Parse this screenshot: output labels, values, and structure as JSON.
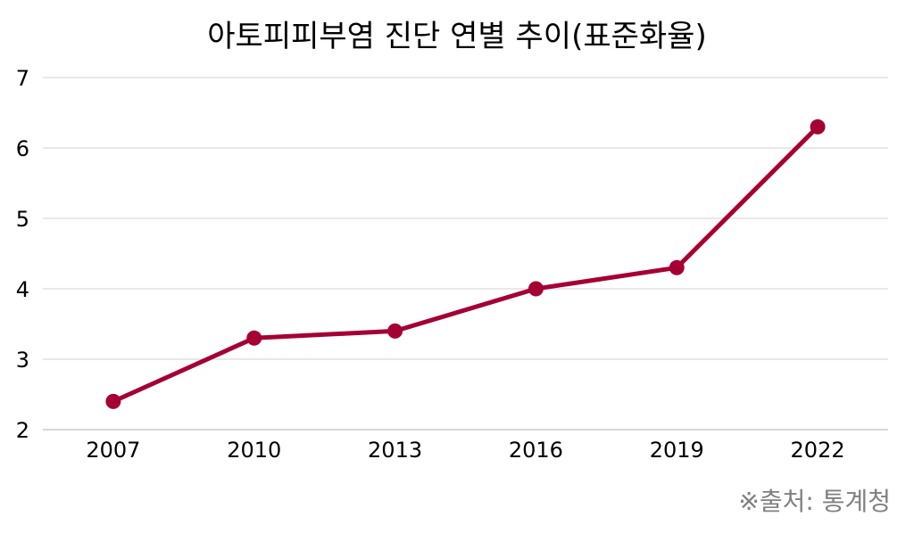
{
  "chart_data": {
    "type": "line",
    "title": "아토피피부염 진단 연별 추이(표준화율)",
    "xlabel": "",
    "ylabel": "",
    "categories": [
      "2007",
      "2010",
      "2013",
      "2016",
      "2019",
      "2022"
    ],
    "series": [
      {
        "values": [
          2.4,
          3.3,
          3.4,
          4.0,
          4.3,
          6.3
        ],
        "color": "#a50034"
      }
    ],
    "ylim": [
      2,
      7
    ],
    "yticks": [
      "2",
      "3",
      "4",
      "5",
      "6",
      "7"
    ],
    "grid": true,
    "legend": "none"
  },
  "source_note": "※출처: 통계청"
}
